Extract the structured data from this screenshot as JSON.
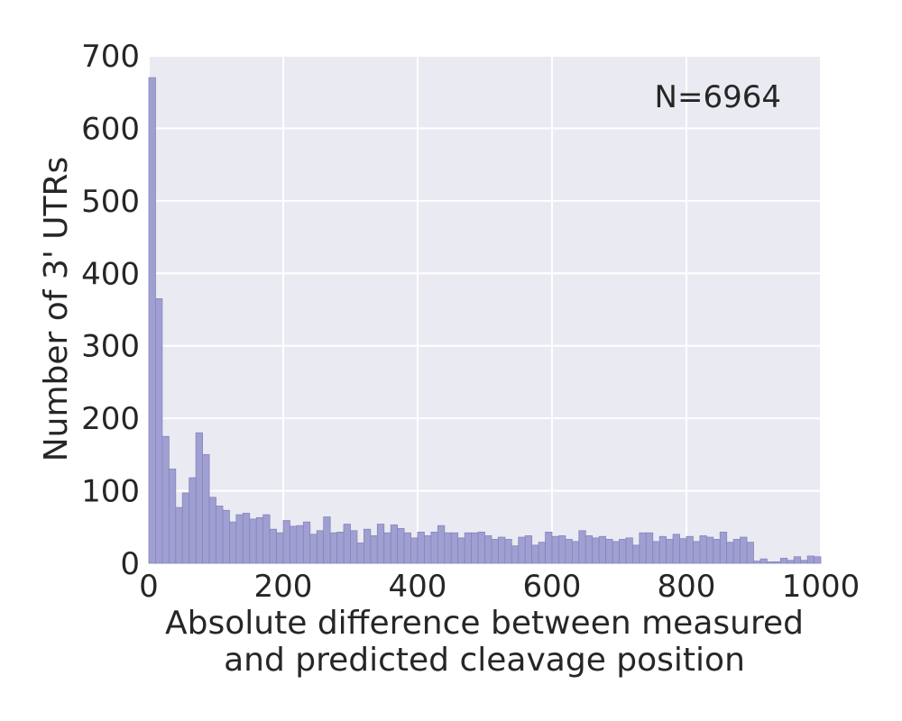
{
  "chart_data": {
    "type": "bar",
    "title": "",
    "xlabel": [
      "Absolute difference between measured",
      "and predicted cleavage position"
    ],
    "ylabel": "Number of 3' UTRs",
    "annotation": "N=6964",
    "xlim": [
      0,
      1000
    ],
    "ylim": [
      0,
      700
    ],
    "xticks": [
      0,
      200,
      400,
      600,
      800,
      1000
    ],
    "yticks": [
      0,
      100,
      200,
      300,
      400,
      500,
      600,
      700
    ],
    "grid": true,
    "bin_width": 10,
    "bins_start": [
      0,
      10,
      20,
      30,
      40,
      50,
      60,
      70,
      80,
      90,
      100,
      110,
      120,
      130,
      140,
      150,
      160,
      170,
      180,
      190,
      200,
      210,
      220,
      230,
      240,
      250,
      260,
      270,
      280,
      290,
      300,
      310,
      320,
      330,
      340,
      350,
      360,
      370,
      380,
      390,
      400,
      410,
      420,
      430,
      440,
      450,
      460,
      470,
      480,
      490,
      500,
      510,
      520,
      530,
      540,
      550,
      560,
      570,
      580,
      590,
      600,
      610,
      620,
      630,
      640,
      650,
      660,
      670,
      680,
      690,
      700,
      710,
      720,
      730,
      740,
      750,
      760,
      770,
      780,
      790,
      800,
      810,
      820,
      830,
      840,
      850,
      860,
      870,
      880,
      890,
      900,
      910,
      920,
      930,
      940,
      950,
      960,
      970,
      980,
      990
    ],
    "values": [
      670,
      365,
      175,
      130,
      77,
      97,
      118,
      180,
      150,
      91,
      79,
      73,
      57,
      67,
      69,
      61,
      63,
      67,
      47,
      42,
      59,
      51,
      52,
      57,
      40,
      45,
      64,
      42,
      43,
      54,
      45,
      28,
      47,
      38,
      54,
      42,
      53,
      48,
      42,
      35,
      43,
      38,
      43,
      52,
      42,
      42,
      35,
      42,
      42,
      43,
      38,
      33,
      36,
      33,
      24,
      36,
      38,
      25,
      29,
      43,
      37,
      38,
      33,
      30,
      45,
      38,
      35,
      37,
      33,
      30,
      33,
      35,
      25,
      42,
      42,
      30,
      37,
      33,
      40,
      34,
      37,
      30,
      38,
      36,
      33,
      43,
      29,
      33,
      36,
      29,
      3,
      6,
      2,
      2,
      7,
      4,
      9,
      4,
      10,
      9
    ],
    "colors": {
      "bar_fill": "#a09fd2",
      "bar_stroke": "#8584bd",
      "plot_bg": "#eaeaf2",
      "grid": "#ffffff",
      "text": "#262626"
    }
  }
}
